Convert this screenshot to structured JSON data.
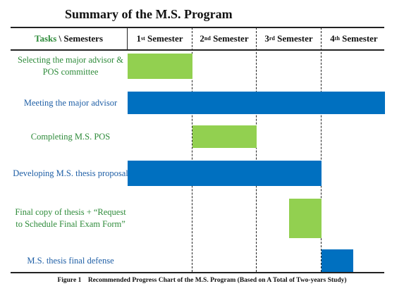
{
  "title": "Summary of the M.S. Program",
  "header": {
    "tasks": "Tasks",
    "separator": " \\ ",
    "semesters": "Semesters",
    "columns": [
      {
        "num": "1",
        "suffix": "st",
        "label": " Semester"
      },
      {
        "num": "2",
        "suffix": "nd",
        "label": " Semester"
      },
      {
        "num": "3",
        "suffix": "rd",
        "label": " Semester"
      },
      {
        "num": "4",
        "suffix": "th",
        "label": " Semester"
      }
    ]
  },
  "tasks": [
    {
      "label": "Selecting the major advisor & POS committee",
      "color": "green",
      "start": 0,
      "end": 1
    },
    {
      "label": "Meeting the major advisor",
      "color": "blue",
      "start": 0,
      "end": 4
    },
    {
      "label": "Completing M.S. POS",
      "color": "green",
      "start": 1,
      "end": 2
    },
    {
      "label": "Developing M.S. thesis proposal",
      "color": "blue",
      "start": 0,
      "end": 3
    },
    {
      "label": "Final copy of thesis + “Request to Schedule Final Exam Form”",
      "color": "green",
      "start": 2.5,
      "end": 3
    },
    {
      "label": "M.S. thesis final defense",
      "color": "blue",
      "start": 3,
      "end": 3.5
    }
  ],
  "colors": {
    "green": "#92d050",
    "blue": "#0070c0",
    "green_text": "#2e8b3a",
    "blue_text": "#1f5fa6"
  },
  "caption": "Figure 1    Recommended Progress Chart of the M.S. Program (Based on A Total of Two-years Study)"
}
